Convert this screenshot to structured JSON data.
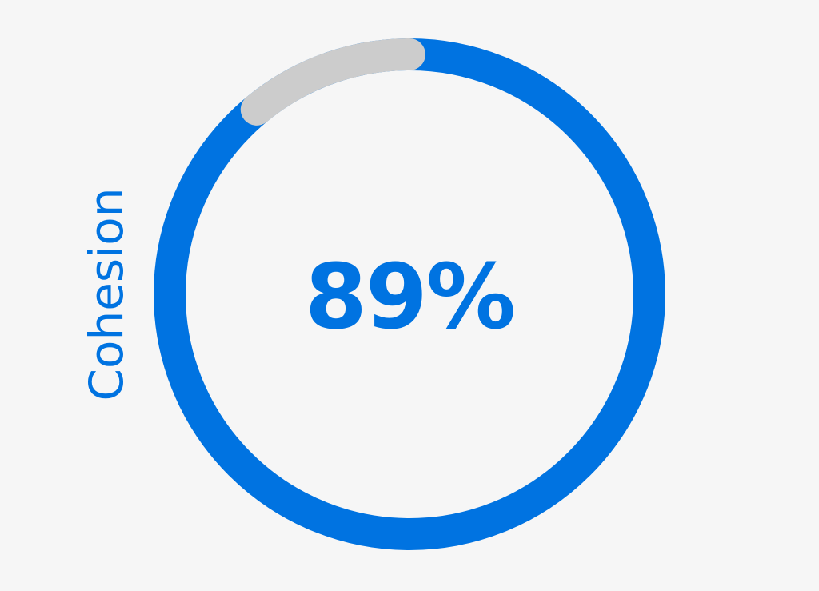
{
  "chart_data": {
    "type": "gauge",
    "label": "Cohesion",
    "value": 89,
    "max": 100,
    "display_value": "89%",
    "colors": {
      "filled": "#0073e1",
      "remaining": "#cccccc",
      "text": "#0073e1",
      "background": "#f6f6f6"
    }
  }
}
